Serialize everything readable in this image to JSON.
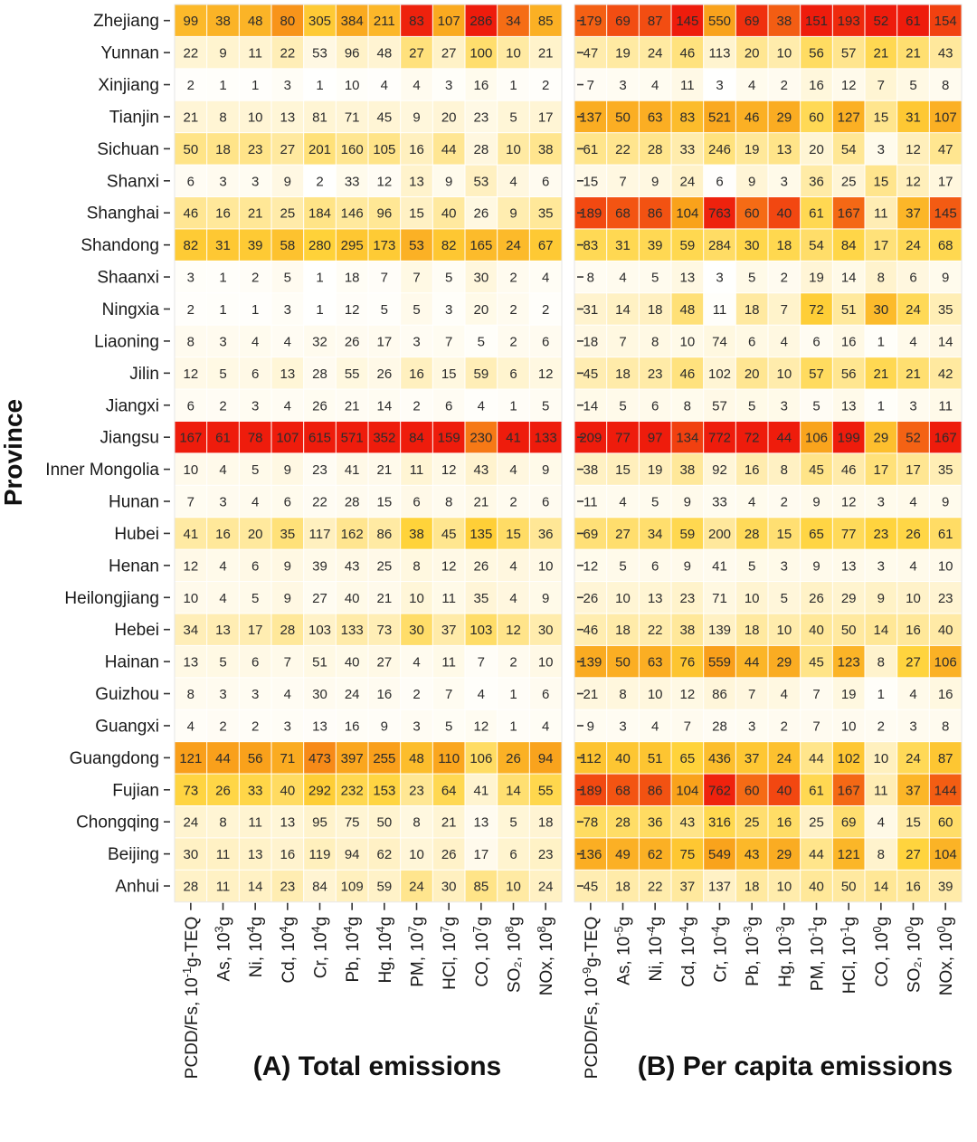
{
  "chart_data": {
    "type": "heatmap",
    "ylabel": "Province",
    "rows": [
      "Zhejiang",
      "Yunnan",
      "Xinjiang",
      "Tianjin",
      "Sichuan",
      "Shanxi",
      "Shanghai",
      "Shandong",
      "Shaanxi",
      "Ningxia",
      "Liaoning",
      "Jilin",
      "Jiangxi",
      "Jiangsu",
      "Inner Mongolia",
      "Hunan",
      "Hubei",
      "Henan",
      "Heilongjiang",
      "Hebei",
      "Hainan",
      "Guizhou",
      "Guangxi",
      "Guangdong",
      "Fujian",
      "Chongqing",
      "Beijing",
      "Anhui"
    ],
    "panels": [
      {
        "title": "(A) Total emissions",
        "columns": [
          {
            "label": "PCDD/Fs, 10",
            "sup": "-1",
            "unit": "g-TEQ"
          },
          {
            "label": "As, 10",
            "sup": "3",
            "unit": "g"
          },
          {
            "label": "Ni, 10",
            "sup": "4",
            "unit": "g"
          },
          {
            "label": "Cd, 10",
            "sup": "4",
            "unit": "g"
          },
          {
            "label": "Cr, 10",
            "sup": "4",
            "unit": "g"
          },
          {
            "label": "Pb, 10",
            "sup": "4",
            "unit": "g"
          },
          {
            "label": "Hg, 10",
            "sup": "4",
            "unit": "g"
          },
          {
            "label": "PM, 10",
            "sup": "7",
            "unit": "g"
          },
          {
            "label": "HCl, 10",
            "sup": "7",
            "unit": "g"
          },
          {
            "label": "CO, 10",
            "sup": "7",
            "unit": "g"
          },
          {
            "label": "SO₂, 10",
            "sup": "8",
            "unit": "g"
          },
          {
            "label": "NOx, 10",
            "sup": "8",
            "unit": "g"
          }
        ],
        "values": [
          [
            99,
            38,
            48,
            80,
            305,
            384,
            211,
            83,
            107,
            286,
            34,
            85
          ],
          [
            22,
            9,
            11,
            22,
            53,
            96,
            48,
            27,
            27,
            100,
            10,
            21
          ],
          [
            2,
            1,
            1,
            3,
            1,
            10,
            4,
            4,
            3,
            16,
            1,
            2
          ],
          [
            21,
            8,
            10,
            13,
            81,
            71,
            45,
            9,
            20,
            23,
            5,
            17
          ],
          [
            50,
            18,
            23,
            27,
            201,
            160,
            105,
            16,
            44,
            28,
            10,
            38
          ],
          [
            6,
            3,
            3,
            9,
            2,
            33,
            12,
            13,
            9,
            53,
            4,
            6
          ],
          [
            46,
            16,
            21,
            25,
            184,
            146,
            96,
            15,
            40,
            26,
            9,
            35
          ],
          [
            82,
            31,
            39,
            58,
            280,
            295,
            173,
            53,
            82,
            165,
            24,
            67
          ],
          [
            3,
            1,
            2,
            5,
            1,
            18,
            7,
            7,
            5,
            30,
            2,
            4
          ],
          [
            2,
            1,
            1,
            3,
            1,
            12,
            5,
            5,
            3,
            20,
            2,
            2
          ],
          [
            8,
            3,
            4,
            4,
            32,
            26,
            17,
            3,
            7,
            5,
            2,
            6
          ],
          [
            12,
            5,
            6,
            13,
            28,
            55,
            26,
            16,
            15,
            59,
            6,
            12
          ],
          [
            6,
            2,
            3,
            4,
            26,
            21,
            14,
            2,
            6,
            4,
            1,
            5
          ],
          [
            167,
            61,
            78,
            107,
            615,
            571,
            352,
            84,
            159,
            230,
            41,
            133
          ],
          [
            10,
            4,
            5,
            9,
            23,
            41,
            21,
            11,
            12,
            43,
            4,
            9
          ],
          [
            7,
            3,
            4,
            6,
            22,
            28,
            15,
            6,
            8,
            21,
            2,
            6
          ],
          [
            41,
            16,
            20,
            35,
            117,
            162,
            86,
            38,
            45,
            135,
            15,
            36
          ],
          [
            12,
            4,
            6,
            9,
            39,
            43,
            25,
            8,
            12,
            26,
            4,
            10
          ],
          [
            10,
            4,
            5,
            9,
            27,
            40,
            21,
            10,
            11,
            35,
            4,
            9
          ],
          [
            34,
            13,
            17,
            28,
            103,
            133,
            73,
            30,
            37,
            103,
            12,
            30
          ],
          [
            13,
            5,
            6,
            7,
            51,
            40,
            27,
            4,
            11,
            7,
            2,
            10
          ],
          [
            8,
            3,
            3,
            4,
            30,
            24,
            16,
            2,
            7,
            4,
            1,
            6
          ],
          [
            4,
            2,
            2,
            3,
            13,
            16,
            9,
            3,
            5,
            12,
            1,
            4
          ],
          [
            121,
            44,
            56,
            71,
            473,
            397,
            255,
            48,
            110,
            106,
            26,
            94
          ],
          [
            73,
            26,
            33,
            40,
            292,
            232,
            153,
            23,
            64,
            41,
            14,
            55
          ],
          [
            24,
            8,
            11,
            13,
            95,
            75,
            50,
            8,
            21,
            13,
            5,
            18
          ],
          [
            30,
            11,
            13,
            16,
            119,
            94,
            62,
            10,
            26,
            17,
            6,
            23
          ],
          [
            28,
            11,
            14,
            23,
            84,
            109,
            59,
            24,
            30,
            85,
            10,
            24
          ]
        ]
      },
      {
        "title": "(B) Per capita emissions",
        "columns": [
          {
            "label": "PCDD/Fs, 10",
            "sup": "-9",
            "unit": "g-TEQ"
          },
          {
            "label": "As, 10",
            "sup": "-5",
            "unit": "g"
          },
          {
            "label": "Ni, 10",
            "sup": "-4",
            "unit": "g"
          },
          {
            "label": "Cd, 10",
            "sup": "-4",
            "unit": "g"
          },
          {
            "label": "Cr, 10",
            "sup": "-4",
            "unit": "g"
          },
          {
            "label": "Pb, 10",
            "sup": "-3",
            "unit": "g"
          },
          {
            "label": "Hg, 10",
            "sup": "-3",
            "unit": "g"
          },
          {
            "label": "PM, 10",
            "sup": "-1",
            "unit": "g"
          },
          {
            "label": "HCl, 10",
            "sup": "-1",
            "unit": "g"
          },
          {
            "label": "CO, 10",
            "sup": "0",
            "unit": "g"
          },
          {
            "label": "SO₂, 10",
            "sup": "0",
            "unit": "g"
          },
          {
            "label": "NOx, 10",
            "sup": "0",
            "unit": "g"
          }
        ],
        "values": [
          [
            179,
            69,
            87,
            145,
            550,
            69,
            38,
            151,
            193,
            52,
            61,
            154
          ],
          [
            47,
            19,
            24,
            46,
            113,
            20,
            10,
            56,
            57,
            21,
            21,
            43
          ],
          [
            7,
            3,
            4,
            11,
            3,
            4,
            2,
            16,
            12,
            7,
            5,
            8
          ],
          [
            137,
            50,
            63,
            83,
            521,
            46,
            29,
            60,
            127,
            15,
            31,
            107
          ],
          [
            61,
            22,
            28,
            33,
            246,
            19,
            13,
            20,
            54,
            3,
            12,
            47
          ],
          [
            15,
            7,
            9,
            24,
            6,
            9,
            3,
            36,
            25,
            15,
            12,
            17
          ],
          [
            189,
            68,
            86,
            104,
            763,
            60,
            40,
            61,
            167,
            11,
            37,
            145
          ],
          [
            83,
            31,
            39,
            59,
            284,
            30,
            18,
            54,
            84,
            17,
            24,
            68
          ],
          [
            8,
            4,
            5,
            13,
            3,
            5,
            2,
            19,
            14,
            8,
            6,
            9
          ],
          [
            31,
            14,
            18,
            48,
            11,
            18,
            7,
            72,
            51,
            30,
            24,
            35
          ],
          [
            18,
            7,
            8,
            10,
            74,
            6,
            4,
            6,
            16,
            1,
            4,
            14
          ],
          [
            45,
            18,
            23,
            46,
            102,
            20,
            10,
            57,
            56,
            21,
            21,
            42
          ],
          [
            14,
            5,
            6,
            8,
            57,
            5,
            3,
            5,
            13,
            1,
            3,
            11
          ],
          [
            209,
            77,
            97,
            134,
            772,
            72,
            44,
            106,
            199,
            29,
            52,
            167
          ],
          [
            38,
            15,
            19,
            38,
            92,
            16,
            8,
            45,
            46,
            17,
            17,
            35
          ],
          [
            11,
            4,
            5,
            9,
            33,
            4,
            2,
            9,
            12,
            3,
            4,
            9
          ],
          [
            69,
            27,
            34,
            59,
            200,
            28,
            15,
            65,
            77,
            23,
            26,
            61
          ],
          [
            12,
            5,
            6,
            9,
            41,
            5,
            3,
            9,
            13,
            3,
            4,
            10
          ],
          [
            26,
            10,
            13,
            23,
            71,
            10,
            5,
            26,
            29,
            9,
            10,
            23
          ],
          [
            46,
            18,
            22,
            38,
            139,
            18,
            10,
            40,
            50,
            14,
            16,
            40
          ],
          [
            139,
            50,
            63,
            76,
            559,
            44,
            29,
            45,
            123,
            8,
            27,
            106
          ],
          [
            21,
            8,
            10,
            12,
            86,
            7,
            4,
            7,
            19,
            1,
            4,
            16
          ],
          [
            9,
            3,
            4,
            7,
            28,
            3,
            2,
            7,
            10,
            2,
            3,
            8
          ],
          [
            112,
            40,
            51,
            65,
            436,
            37,
            24,
            44,
            102,
            10,
            24,
            87
          ],
          [
            189,
            68,
            86,
            104,
            762,
            60,
            40,
            61,
            167,
            11,
            37,
            144
          ],
          [
            78,
            28,
            36,
            43,
            316,
            25,
            16,
            25,
            69,
            4,
            15,
            60
          ],
          [
            136,
            49,
            62,
            75,
            549,
            43,
            29,
            44,
            121,
            8,
            27,
            104
          ],
          [
            45,
            18,
            22,
            37,
            137,
            18,
            10,
            40,
            50,
            14,
            16,
            39
          ]
        ]
      }
    ],
    "color_scale": {
      "low": "#ffffff",
      "mid1": "#fff1c4",
      "mid2": "#ffd33a",
      "mid3": "#f9a11b",
      "high": "#ee1c0c"
    },
    "grid": true
  }
}
